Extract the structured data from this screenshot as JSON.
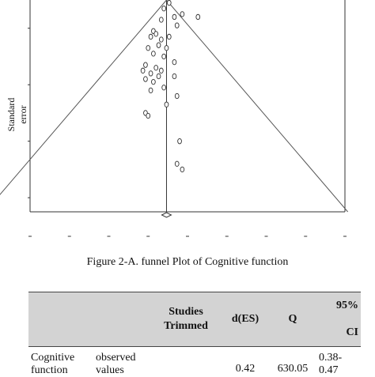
{
  "figure": {
    "ylabel": "Standard error",
    "caption": "Figure 2-A. funnel Plot of Cognitive function"
  },
  "chart_data": {
    "type": "scatter",
    "title": "",
    "xlabel": "",
    "ylabel": "Standard error",
    "note": "funnel plot; tick labels illegible",
    "points": [
      [
        0.33,
        0.01
      ],
      [
        0.31,
        0.03
      ],
      [
        0.38,
        0.05
      ],
      [
        0.35,
        0.06
      ],
      [
        0.44,
        0.06
      ],
      [
        0.3,
        0.07
      ],
      [
        0.36,
        0.09
      ],
      [
        0.27,
        0.11
      ],
      [
        0.26,
        0.13
      ],
      [
        0.28,
        0.12
      ],
      [
        0.33,
        0.13
      ],
      [
        0.3,
        0.14
      ],
      [
        0.29,
        0.16
      ],
      [
        0.25,
        0.17
      ],
      [
        0.32,
        0.17
      ],
      [
        0.27,
        0.19
      ],
      [
        0.31,
        0.2
      ],
      [
        0.35,
        0.22
      ],
      [
        0.24,
        0.23
      ],
      [
        0.28,
        0.24
      ],
      [
        0.23,
        0.25
      ],
      [
        0.3,
        0.25
      ],
      [
        0.26,
        0.26
      ],
      [
        0.29,
        0.27
      ],
      [
        0.35,
        0.27
      ],
      [
        0.24,
        0.28
      ],
      [
        0.27,
        0.29
      ],
      [
        0.31,
        0.31
      ],
      [
        0.26,
        0.32
      ],
      [
        0.36,
        0.34
      ],
      [
        0.32,
        0.37
      ],
      [
        0.24,
        0.4
      ],
      [
        0.25,
        0.41
      ],
      [
        0.37,
        0.5
      ],
      [
        0.36,
        0.58
      ],
      [
        0.38,
        0.6
      ]
    ],
    "pooled_estimate": 0.42,
    "ylim": [
      0,
      0.75
    ],
    "grid": false
  },
  "table": {
    "headers": [
      "",
      "",
      "Studies Trimmed",
      "d(ES)",
      "Q",
      "95%",
      "CI"
    ],
    "rows": [
      {
        "outcome": "Cognitive function",
        "type": "observed values",
        "trimmed": "",
        "es": "0.42",
        "q": "630.05",
        "ci_lo": "0.38-",
        "ci_hi": "0.47"
      }
    ]
  }
}
